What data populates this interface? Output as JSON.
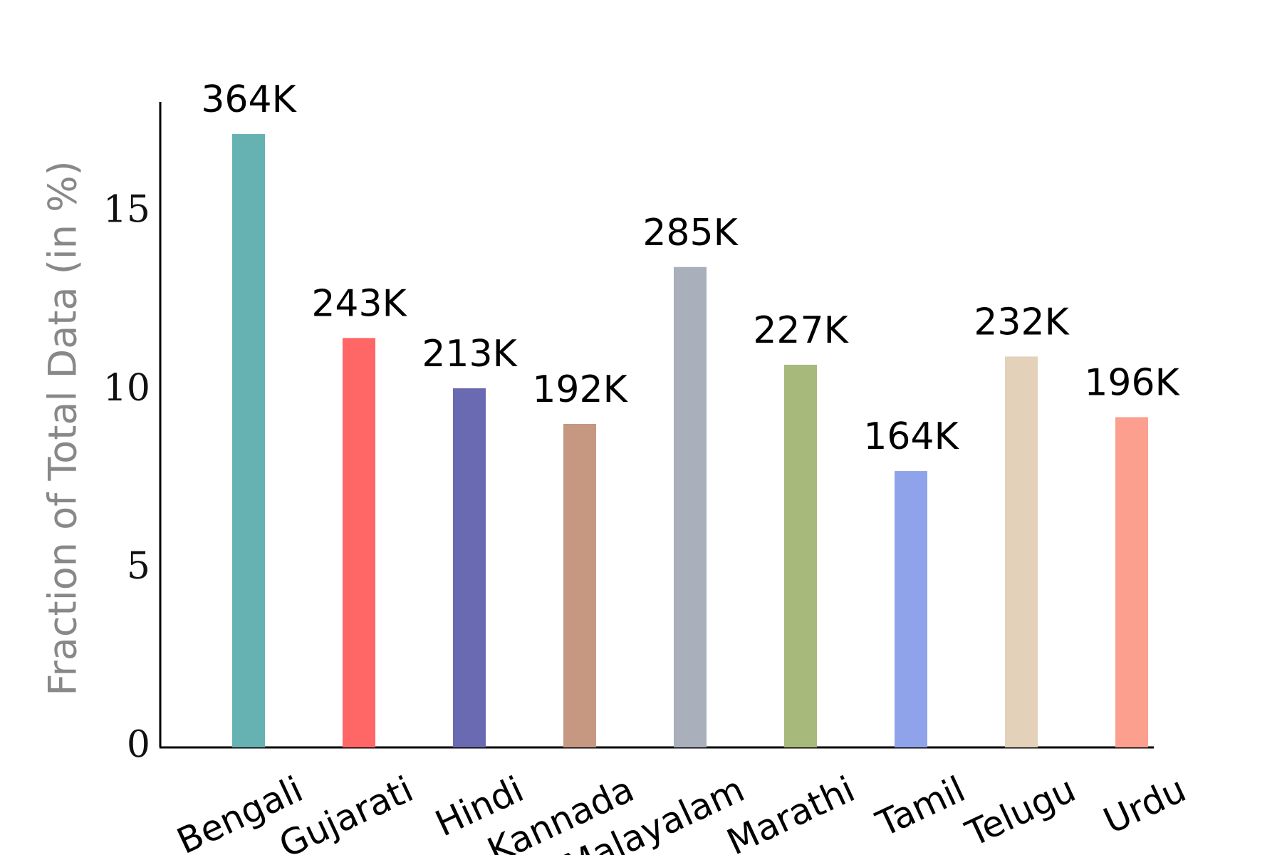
{
  "chart_data": {
    "type": "bar",
    "y_label": "Fraction of Total Data (in %)",
    "categories": [
      "Bengali",
      "Gujarati",
      "Hindi",
      "Kannada",
      "Malayalam",
      "Marathi",
      "Tamil",
      "Telugu",
      "Urdu"
    ],
    "values": [
      17.2,
      11.48,
      10.07,
      9.07,
      13.47,
      10.73,
      7.75,
      10.96,
      9.26
    ],
    "bar_labels": [
      "364K",
      "243K",
      "213K",
      "192K",
      "285K",
      "227K",
      "164K",
      "232K",
      "196K"
    ],
    "colors": [
      "#66b2b2",
      "#ff6666",
      "#6a6ab2",
      "#c69781",
      "#a9b0bb",
      "#a7ba7c",
      "#8ea3ea",
      "#e3d2b9",
      "#fd9f8e"
    ],
    "ylim": [
      0,
      18.1
    ],
    "yticks": [
      0,
      5,
      10,
      15
    ],
    "grid": false
  }
}
